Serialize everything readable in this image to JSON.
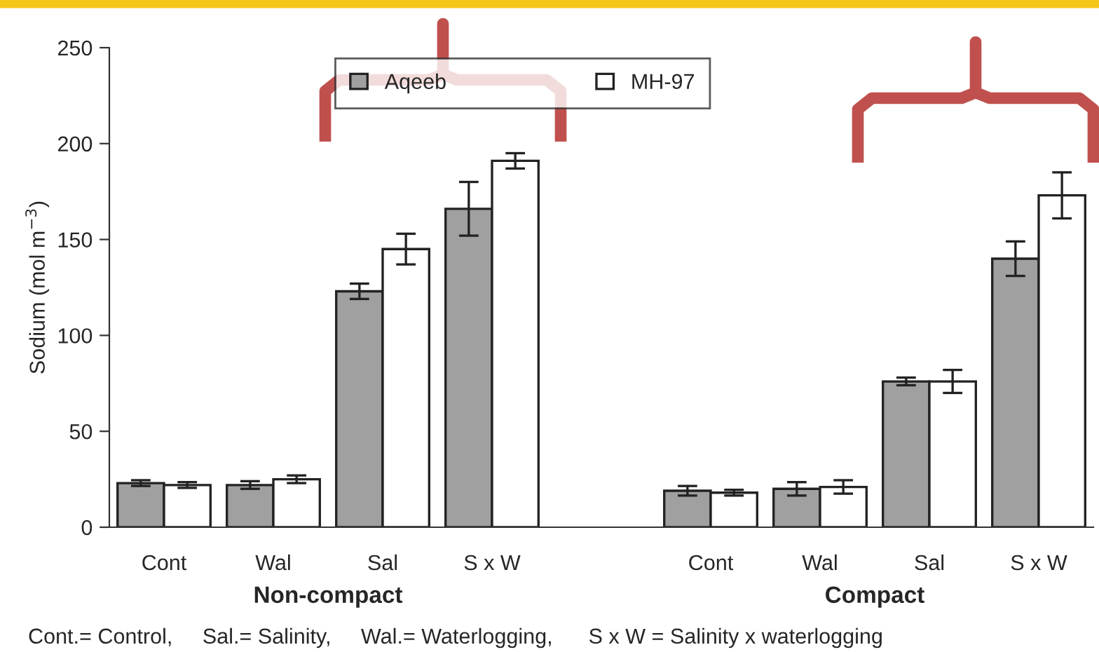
{
  "chart_data": {
    "type": "bar",
    "ylabel": "Sodium (mol m$^{−3}$)",
    "categories": [
      "Cont",
      "Wal",
      "Sal",
      "S x W",
      null,
      "Cont",
      "Wal",
      "Sal",
      "S x W"
    ],
    "series": [
      {
        "name": "Aqeeb",
        "color": "#a0a0a0",
        "values": [
          23,
          22,
          123,
          166,
          null,
          19,
          20,
          76,
          140
        ],
        "errors": [
          1.5,
          2,
          4,
          14,
          null,
          2.5,
          3.5,
          2,
          9
        ]
      },
      {
        "name": "MH-97",
        "color": "#ffffff",
        "values": [
          22,
          25,
          145,
          191,
          null,
          18,
          21,
          76,
          173
        ],
        "errors": [
          1.5,
          2,
          8,
          4,
          null,
          1.5,
          3.5,
          6,
          12
        ]
      }
    ],
    "ylim": [
      0,
      250
    ],
    "yticks": [
      0,
      50,
      100,
      150,
      200,
      250
    ],
    "grid": false,
    "legend": "top",
    "annotations": [
      "Non-compact",
      "Compact",
      "Cont.= Control,     Sal.= Salinity,     Wal.= Waterlogging,      S x W = Salinity x waterlogging"
    ]
  }
}
